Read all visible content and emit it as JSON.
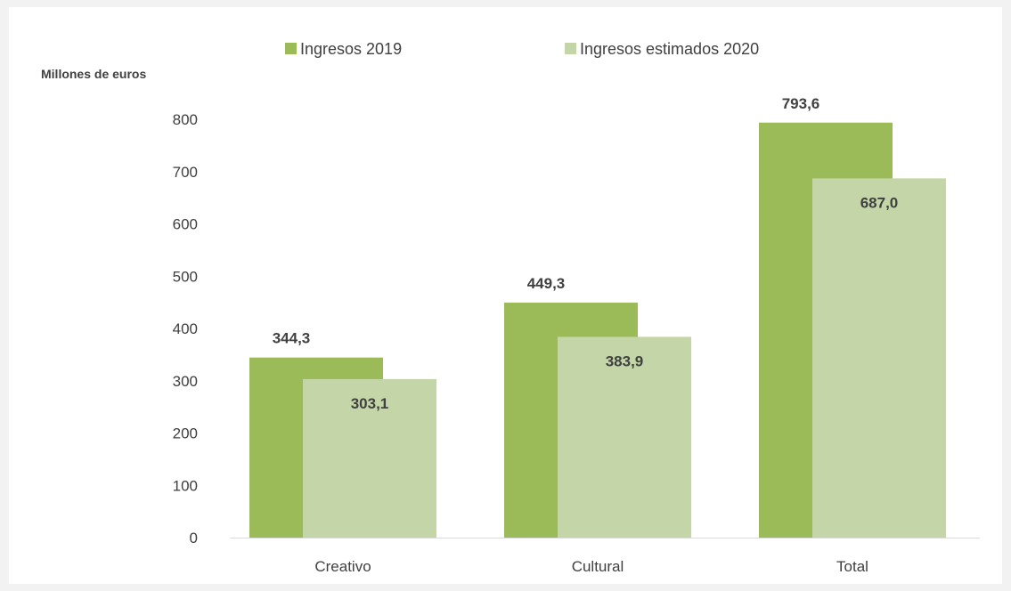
{
  "chart_data": {
    "type": "bar",
    "title": "",
    "xlabel": "",
    "ylabel": "Millones de euros",
    "categories": [
      "Creativo",
      "Cultural",
      "Total"
    ],
    "series": [
      {
        "name": "Ingresos 2019",
        "values": [
          344.3,
          449.3,
          793.6
        ],
        "labels": [
          "344,3",
          "449,3",
          "793,6"
        ],
        "color": "#9bbb59"
      },
      {
        "name": "Ingresos estimados 2020",
        "values": [
          303.1,
          383.9,
          687.0
        ],
        "labels": [
          "303,1",
          "383,9",
          "687,0"
        ],
        "color": "#c4d6a7"
      }
    ],
    "ylim": [
      0,
      800
    ],
    "yticks": [
      0,
      100,
      200,
      300,
      400,
      500,
      600,
      700,
      800
    ],
    "grid": false,
    "legend_position": "top"
  }
}
